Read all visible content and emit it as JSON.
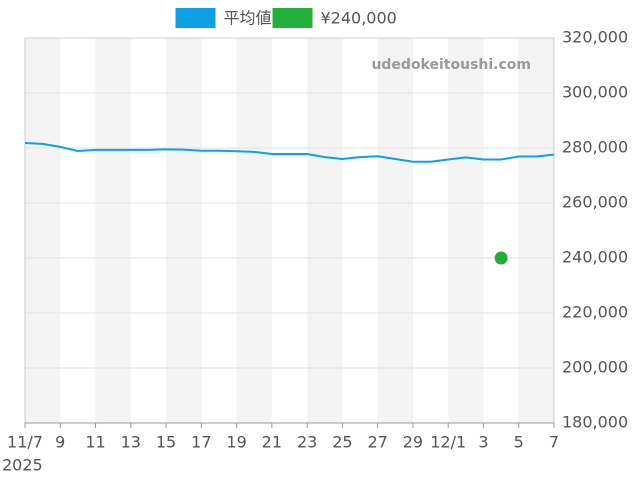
{
  "chart_data": {
    "type": "line",
    "watermark": "udedokeitoushi.com",
    "categories": [
      "11/7",
      null,
      "9",
      null,
      "11",
      null,
      "13",
      null,
      "15",
      null,
      "17",
      null,
      "19",
      null,
      "21",
      null,
      "23",
      null,
      "25",
      null,
      "27",
      null,
      "29",
      null,
      "12/1",
      null,
      "3",
      null,
      "5",
      null,
      "7"
    ],
    "x_sublabel": "2025",
    "series": [
      {
        "name": "平均値",
        "color": "#0ea0e6",
        "style": "line",
        "values": [
          281800,
          281500,
          280400,
          278900,
          279300,
          279300,
          279300,
          279300,
          279500,
          279400,
          279000,
          279000,
          278800,
          278600,
          277800,
          277800,
          277800,
          276700,
          276000,
          276700,
          277000,
          276000,
          275000,
          275000,
          275800,
          276600,
          275800,
          275800,
          276900,
          276900,
          277600
        ]
      },
      {
        "name": "¥240,000",
        "color": "#22b03a",
        "style": "dot",
        "values": [
          null,
          null,
          null,
          null,
          null,
          null,
          null,
          null,
          null,
          null,
          null,
          null,
          null,
          null,
          null,
          null,
          null,
          null,
          null,
          null,
          null,
          null,
          null,
          null,
          null,
          null,
          null,
          240000,
          null,
          null,
          null
        ]
      }
    ],
    "ylim": [
      180000,
      320000
    ],
    "yticks": [
      {
        "value": 180000,
        "label": "180,000"
      },
      {
        "value": 200000,
        "label": "200,000"
      },
      {
        "value": 220000,
        "label": "220,000"
      },
      {
        "value": 240000,
        "label": "240,000"
      },
      {
        "value": 260000,
        "label": "260,000"
      },
      {
        "value": 280000,
        "label": "280,000"
      },
      {
        "value": 300000,
        "label": "300,000"
      },
      {
        "value": 320000,
        "label": "320,000"
      }
    ],
    "grid": true,
    "y_axis_side": "right",
    "legend_position": "top"
  }
}
